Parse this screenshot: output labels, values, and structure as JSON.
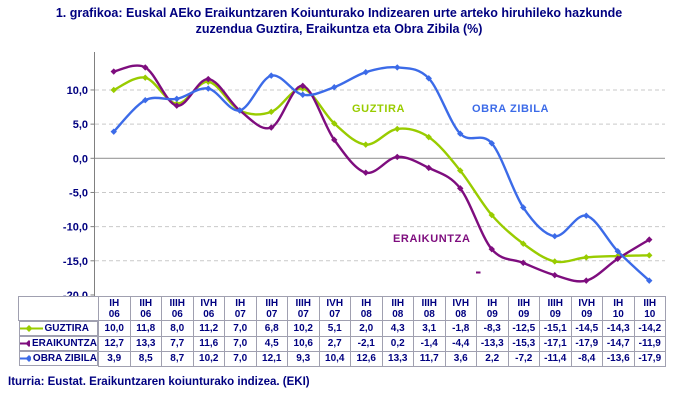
{
  "title": {
    "line1": "1. grafikoa: Euskal AEko Eraikuntzaren Koiunturako Indizearen urte arteko hiruhileko hazkunde",
    "line2": "zuzendua Guztira, Eraikuntza eta Obra Zibila (%)"
  },
  "source": "Iturria: Eustat. Eraikuntzaren koiunturako indizea. (EKI)",
  "colors": {
    "text_navy": "#000080",
    "guztira": "#99CC00",
    "eraikuntza": "#7E0D7E",
    "obra_zibila": "#3C6BE8",
    "gridline": "#C9C9C9",
    "zero_line": "#999999",
    "axis": "#808080",
    "table_border": "#A0A0B0"
  },
  "chart_data": {
    "type": "line",
    "smoothed": true,
    "title": "1. grafikoa: Euskal AEko Eraikuntzaren Koiunturako Indizearen urte arteko hiruhileko hazkunde zuzendua Guztira, Eraikuntza eta Obra Zibila (%)",
    "xlabel": "",
    "ylabel": "",
    "ylim": [
      -20,
      14.6
    ],
    "y_ticks": [
      10,
      5,
      0,
      -5,
      -10,
      -15,
      -20
    ],
    "grid": "horizontal-dashed",
    "legend_position": "table-left",
    "categories": [
      {
        "q": "IH",
        "y": "06"
      },
      {
        "q": "IIH",
        "y": "06"
      },
      {
        "q": "IIIH",
        "y": "06"
      },
      {
        "q": "IVH",
        "y": "06"
      },
      {
        "q": "IH",
        "y": "07"
      },
      {
        "q": "IIH",
        "y": "07"
      },
      {
        "q": "IIIH",
        "y": "07"
      },
      {
        "q": "IVH",
        "y": "07"
      },
      {
        "q": "IH",
        "y": "08"
      },
      {
        "q": "IIH",
        "y": "08"
      },
      {
        "q": "IIIH",
        "y": "08"
      },
      {
        "q": "IVH",
        "y": "08"
      },
      {
        "q": "IH",
        "y": "09"
      },
      {
        "q": "IIH",
        "y": "09"
      },
      {
        "q": "IIIH",
        "y": "09"
      },
      {
        "q": "IVH",
        "y": "09"
      },
      {
        "q": "IH",
        "y": "10"
      },
      {
        "q": "IIH",
        "y": "10"
      }
    ],
    "series": [
      {
        "name": "GUZTIRA",
        "chart_label": "GUZTIRA",
        "color": "#99CC00",
        "values": [
          10.0,
          11.8,
          8.0,
          11.2,
          7.0,
          6.8,
          10.2,
          5.1,
          2.0,
          4.3,
          3.1,
          -1.8,
          -8.3,
          -12.5,
          -15.1,
          -14.5,
          -14.3,
          -14.2
        ]
      },
      {
        "name": "ERAIKUNTZA",
        "chart_label": "ERAIKUNTZA",
        "color": "#7E0D7E",
        "values": [
          12.7,
          13.3,
          7.7,
          11.6,
          7.0,
          4.5,
          10.6,
          2.7,
          -2.1,
          0.2,
          -1.4,
          -4.4,
          -13.3,
          -15.3,
          -17.1,
          -17.9,
          -14.7,
          -11.9
        ]
      },
      {
        "name": "OBRA ZIBILA",
        "chart_label": "OBRA ZIBILA",
        "color": "#3C6BE8",
        "values": [
          3.9,
          8.5,
          8.7,
          10.2,
          7.0,
          12.1,
          9.3,
          10.4,
          12.6,
          13.3,
          11.7,
          3.6,
          2.2,
          -7.2,
          -11.4,
          -8.4,
          -13.6,
          -17.9
        ]
      }
    ]
  }
}
